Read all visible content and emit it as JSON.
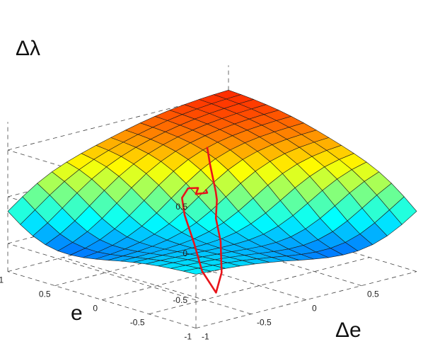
{
  "chart_data": {
    "type": "surface",
    "title": "",
    "xlabel": "Δe",
    "ylabel": "e",
    "zlabel": "Δλ",
    "xlim": [
      -1,
      1
    ],
    "ylim": [
      -1,
      1
    ],
    "zlim": [
      -0.8,
      0.8
    ],
    "x_ticks": [
      "-1",
      "-0.5",
      "0",
      "0.5"
    ],
    "y_ticks": [
      "-1",
      "-0.5",
      "0",
      "0.5",
      "1"
    ],
    "z_ticks": [
      "-0.5",
      "0",
      "0.5"
    ],
    "grid": true,
    "grid_resolution": 15,
    "colormap": "jet",
    "surface_model": "0.38*(tanh(2.2*(e+de)) + tanh(1.5*e)*tanh(1.5*de)*0.5)",
    "trajectory": {
      "color": "#e8141a",
      "points": [
        [
          0.62,
          0.78,
          0.1
        ],
        [
          0.45,
          0.55,
          0.04
        ],
        [
          0.25,
          0.28,
          0.01
        ],
        [
          0.1,
          0.08,
          0.0
        ],
        [
          0.0,
          -0.05,
          -0.02
        ],
        [
          -0.18,
          -0.25,
          -0.1
        ],
        [
          -0.35,
          -0.5,
          -0.22
        ],
        [
          -0.58,
          -0.78,
          -0.4
        ],
        [
          -0.75,
          -0.92,
          -0.52
        ],
        [
          -0.62,
          -0.62,
          -0.42
        ],
        [
          -0.42,
          -0.3,
          -0.28
        ],
        [
          -0.25,
          0.0,
          -0.12
        ],
        [
          -0.12,
          0.18,
          -0.03
        ],
        [
          0.02,
          0.28,
          0.0
        ],
        [
          0.06,
          0.22,
          0.01
        ],
        [
          -0.02,
          0.15,
          -0.01
        ],
        [
          0.04,
          0.1,
          0.0
        ],
        [
          0.08,
          0.16,
          0.0
        ]
      ]
    }
  }
}
